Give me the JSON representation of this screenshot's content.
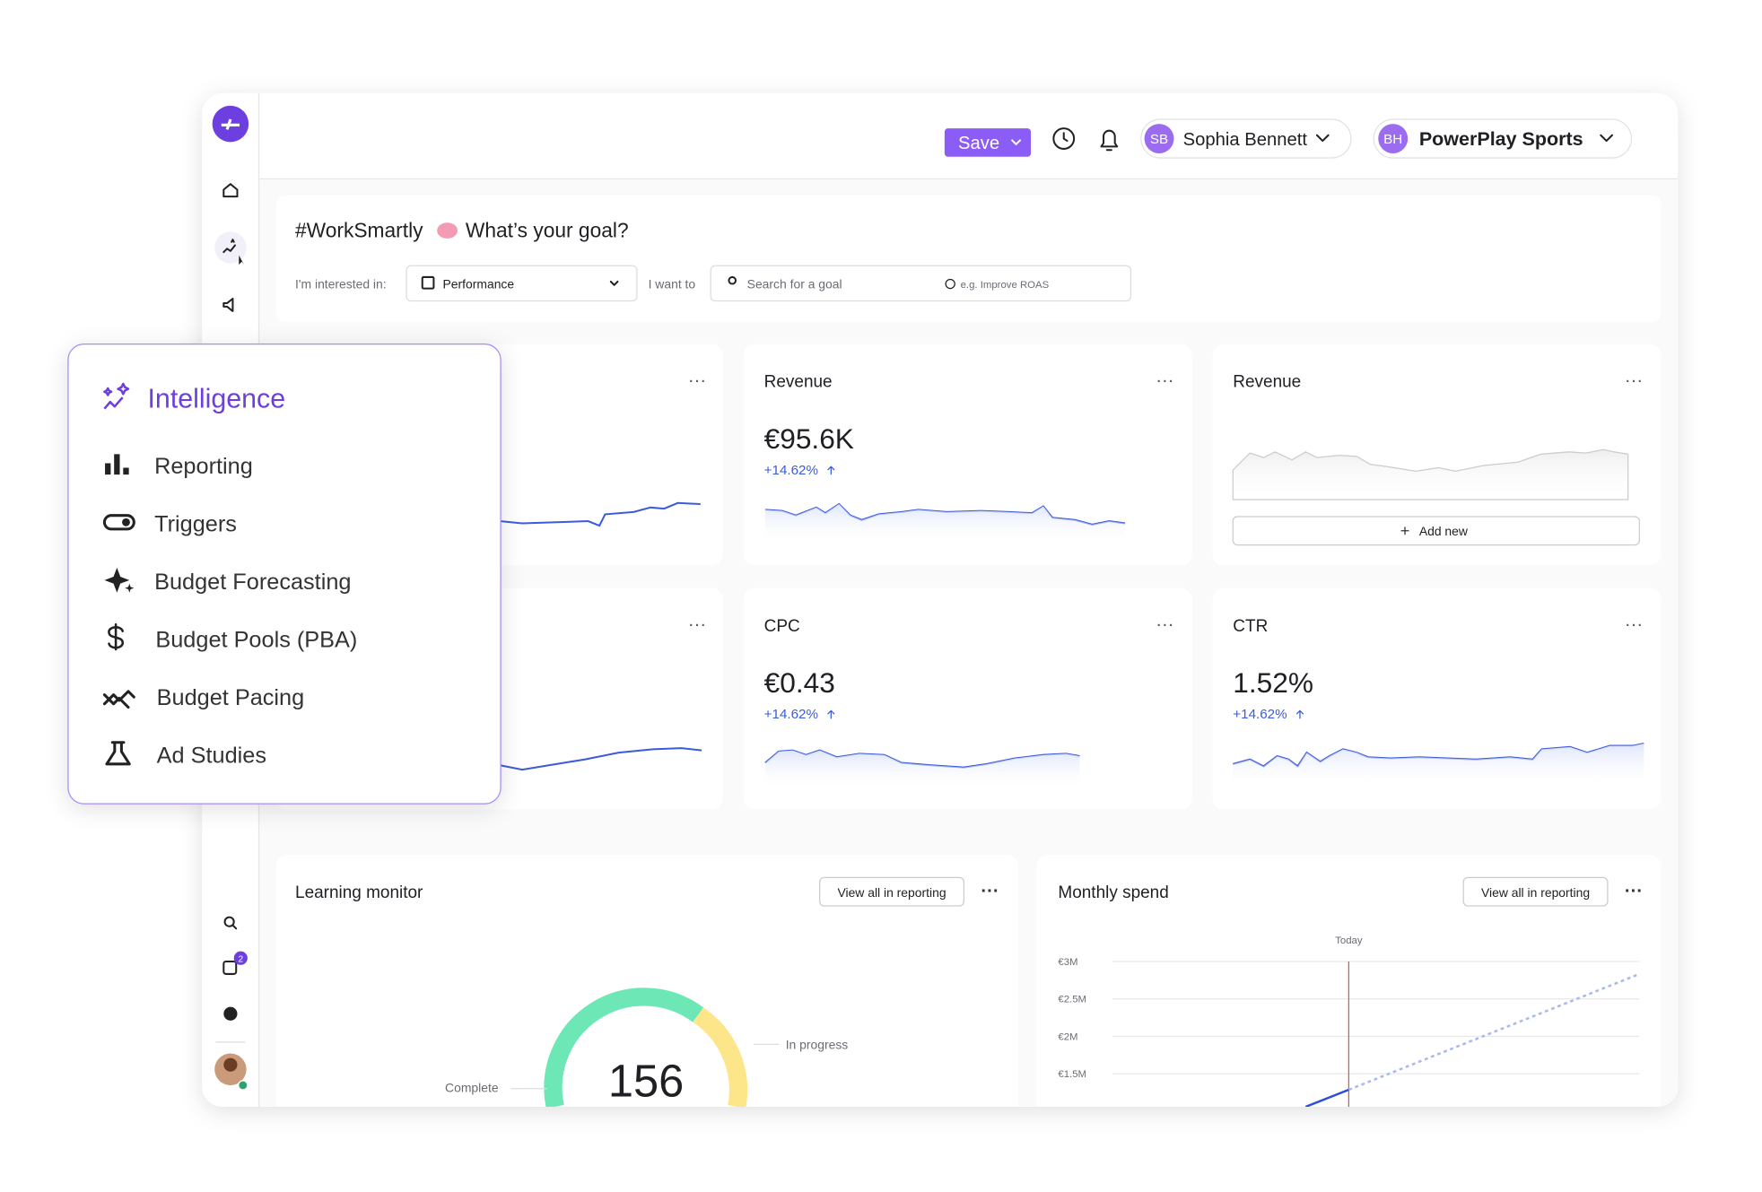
{
  "header": {
    "save": "Save",
    "user_initials": "SB",
    "user_name": "Sophia Bennett",
    "account_initials": "BH",
    "account_name": "PowerPlay Sports"
  },
  "sidebar": {
    "badge": "2"
  },
  "goal": {
    "title": "#WorkSmartly",
    "question": "What’s your goal?",
    "interest_label": "I'm interested in:",
    "interest_value": "Performance",
    "want_label": "I want to",
    "search_placeholder": "Search for a goal",
    "hint": "e.g. Improve ROAS"
  },
  "cards": [
    {
      "title": "Revenue",
      "value": "€95.6K",
      "change": "+14.62%"
    },
    {
      "title": "Revenue",
      "action": "Add new"
    },
    {
      "title": "CPC",
      "value": "€0.43",
      "change": "+14.62%"
    },
    {
      "title": "CTR",
      "value": "1.52%",
      "change": "+14.62%"
    }
  ],
  "learning": {
    "title": "Learning monitor",
    "button": "View all in reporting",
    "count": "156",
    "in_progress": "In progress",
    "complete": "Complete"
  },
  "spend": {
    "title": "Monthly spend",
    "button": "View all in reporting",
    "today": "Today",
    "ticks": [
      "€3M",
      "€2.5M",
      "€2M",
      "€1.5M"
    ]
  },
  "menu": {
    "title": "Intelligence",
    "items": [
      "Reporting",
      "Triggers",
      "Budget Forecasting",
      "Budget Pools (PBA)",
      "Budget Pacing",
      "Ad Studies"
    ]
  }
}
